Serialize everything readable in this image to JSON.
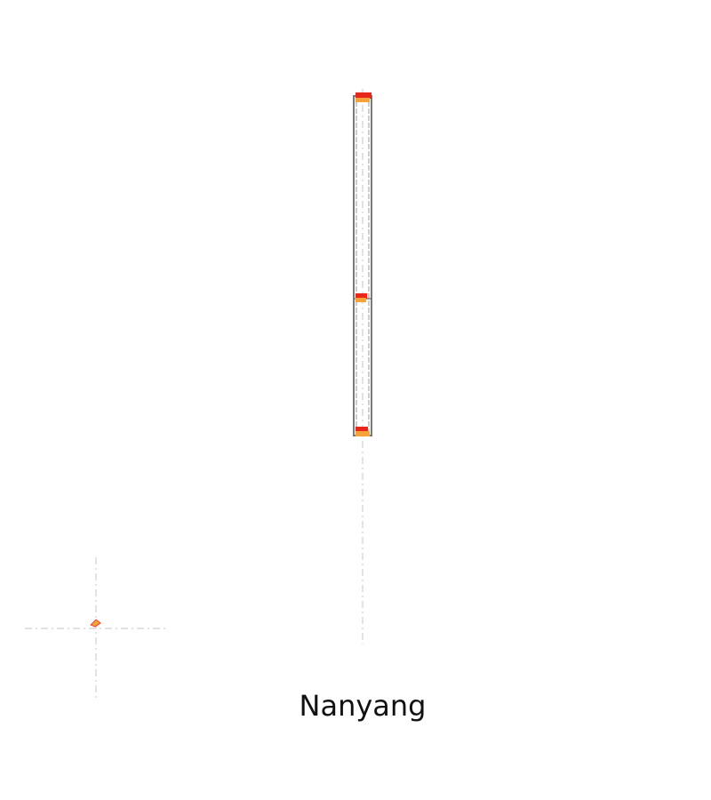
{
  "caption": "Nanyang",
  "colors": {
    "guide": "#c8c8c8",
    "outline": "#808080",
    "marker_top": "#e8261a",
    "marker_bottom": "#f5a23a"
  }
}
